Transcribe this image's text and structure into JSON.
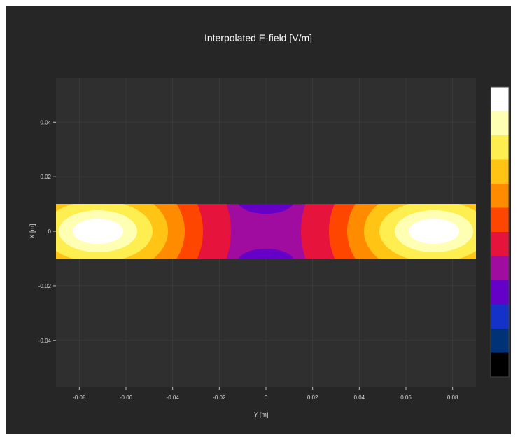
{
  "chart_data": {
    "type": "heatmap",
    "title": "Interpolated E-field [V/m]",
    "xlabel": "Y [m]",
    "ylabel": "X [m]",
    "xlim": [
      -0.09,
      0.09
    ],
    "ylim": [
      -0.057,
      0.056
    ],
    "x_ticks": [
      -0.08,
      -0.06,
      -0.04,
      -0.02,
      0,
      0.02,
      0.04,
      0.06,
      0.08
    ],
    "x_tick_labels": [
      "-0.08",
      "-0.06",
      "-0.04",
      "-0.02",
      "0",
      "0.02",
      "0.04",
      "0.06",
      "0.08"
    ],
    "y_ticks": [
      0.04,
      0.02,
      0,
      -0.02,
      -0.04
    ],
    "y_tick_labels": [
      "0.04",
      "0.02",
      "0",
      "-0.02",
      "-0.04"
    ],
    "grid": true,
    "domain": {
      "y_range": [
        -0.09,
        0.09
      ],
      "x_range": [
        -0.01,
        0.01
      ]
    },
    "field_maxima_at_y": [
      -0.072,
      0.072
    ],
    "field_minima_at_y": [
      0
    ],
    "colorbar_levels": [
      "#ffffff",
      "#ffffb4",
      "#ffee50",
      "#ffc414",
      "#ff8c00",
      "#ff4600",
      "#e6143c",
      "#a00ca0",
      "#6400c8",
      "#1432c8",
      "#003278",
      "#000000"
    ],
    "colormap": "hot-to-blue contour levels, white = maximum, black = minimum",
    "legend": "colorbar right, no tick labels"
  }
}
